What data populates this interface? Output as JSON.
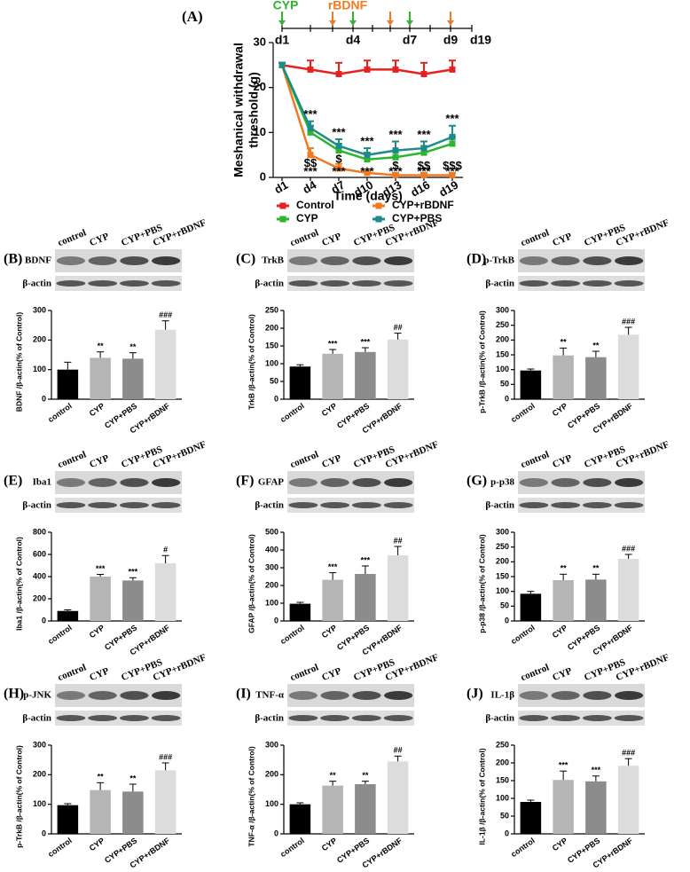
{
  "chart_data": [
    {
      "type": "line",
      "panel": "(A)",
      "timeline": {
        "cyp_label": "CYP",
        "rbdnf_label": "rBDNF",
        "labels": [
          "d1",
          "d4",
          "d7",
          "d9",
          "d19"
        ]
      },
      "ylabel": [
        "Meshanical withdrawal",
        "threshold (g)"
      ],
      "xlabel": "Time (days)",
      "categories": [
        "d1",
        "d4",
        "d7",
        "d10",
        "d13",
        "d16",
        "d19"
      ],
      "ylim": [
        0,
        30
      ],
      "yticks": [
        0,
        10,
        20,
        30
      ],
      "series": [
        {
          "name": "Control",
          "color": "#e8201e",
          "values": [
            25,
            24,
            23,
            24,
            24,
            23,
            24
          ],
          "errors": [
            0.5,
            2,
            2.5,
            2,
            2,
            2.5,
            2
          ]
        },
        {
          "name": "CYP+rBDNF",
          "color": "#f07a22",
          "values": [
            25,
            5,
            2,
            1,
            0.5,
            0.5,
            0.5
          ],
          "errors": [
            0.5,
            1.5,
            1,
            0.5,
            0.5,
            0.5,
            0.5
          ]
        },
        {
          "name": "CYP",
          "color": "#2db52d",
          "values": [
            25,
            10,
            6,
            4,
            4.5,
            5.5,
            7.5
          ],
          "errors": [
            0.5,
            1.5,
            1.5,
            1.5,
            1.5,
            1.5,
            1.5
          ]
        },
        {
          "name": "CYP+PBS",
          "color": "#1f8a8a",
          "values": [
            25,
            11,
            7,
            5,
            6,
            6.5,
            9
          ],
          "errors": [
            0.5,
            1.5,
            1.5,
            1.5,
            2,
            1.5,
            2.5
          ]
        }
      ],
      "sig_upper": [
        null,
        "***",
        "***",
        "***",
        "***",
        "***",
        "***"
      ],
      "sig_dollar": [
        null,
        "$$",
        "$",
        null,
        "$",
        "$$",
        "$$$"
      ],
      "sig_lower": [
        null,
        "***",
        "***",
        "***",
        "***",
        "***",
        "***"
      ]
    },
    {
      "type": "bar",
      "panel": "(B)",
      "blot_labels": [
        "BDNF",
        "β-actin"
      ],
      "categories": [
        "control",
        "CYP",
        "CYP+PBS",
        "CYP+rBDNF"
      ],
      "values": [
        100,
        140,
        137,
        235
      ],
      "errors": [
        25,
        20,
        20,
        30
      ],
      "significance": [
        null,
        "**",
        "**",
        "###"
      ],
      "colors": [
        "#000000",
        "#b5b5b5",
        "#8c8c8c",
        "#dcdcdc"
      ],
      "ylabel": "BDNF /β-actin(% of Control)",
      "ylim": [
        0,
        300
      ],
      "yticks": [
        0,
        100,
        200,
        300
      ]
    },
    {
      "type": "bar",
      "panel": "(C)",
      "blot_labels": [
        "TrkB",
        "β-actin"
      ],
      "categories": [
        "control",
        "CYP",
        "CYP+PBS",
        "CYP+rBDNF"
      ],
      "values": [
        92,
        128,
        133,
        168
      ],
      "errors": [
        5,
        12,
        12,
        18
      ],
      "significance": [
        null,
        "***",
        "***",
        "##"
      ],
      "colors": [
        "#000000",
        "#b5b5b5",
        "#8c8c8c",
        "#dcdcdc"
      ],
      "ylabel": "TrkB /β-actin(% of Control)",
      "ylim": [
        0,
        250
      ],
      "yticks": [
        0,
        50,
        100,
        150,
        200,
        250
      ]
    },
    {
      "type": "bar",
      "panel": "(D)",
      "blot_labels": [
        "p-TrkB",
        "β-actin"
      ],
      "categories": [
        "control",
        "CYP",
        "CYP+PBS",
        "CYP+rBDNF"
      ],
      "values": [
        97,
        148,
        142,
        218
      ],
      "errors": [
        5,
        25,
        20,
        25
      ],
      "significance": [
        null,
        "**",
        "**",
        "###"
      ],
      "colors": [
        "#000000",
        "#b5b5b5",
        "#8c8c8c",
        "#dcdcdc"
      ],
      "ylabel": "p-TrkB /β-actin(% of Control)",
      "ylim": [
        0,
        300
      ],
      "yticks": [
        0,
        50,
        100,
        150,
        200,
        250,
        300
      ]
    },
    {
      "type": "bar",
      "panel": "(E)",
      "blot_labels": [
        "Iba1",
        "β-actin"
      ],
      "categories": [
        "control",
        "CYP",
        "CYP+PBS",
        "CYP+rBDNF"
      ],
      "values": [
        90,
        400,
        365,
        520
      ],
      "errors": [
        10,
        20,
        25,
        70
      ],
      "significance": [
        null,
        "***",
        "***",
        "#"
      ],
      "colors": [
        "#000000",
        "#b5b5b5",
        "#8c8c8c",
        "#dcdcdc"
      ],
      "ylabel": "Iba1 /β-actin(% of Control)",
      "ylim": [
        0,
        800
      ],
      "yticks": [
        0,
        200,
        400,
        600,
        800
      ]
    },
    {
      "type": "bar",
      "panel": "(F)",
      "blot_labels": [
        "GFAP",
        "β-actin"
      ],
      "categories": [
        "control",
        "CYP",
        "CYP+PBS",
        "CYP+rBDNF"
      ],
      "values": [
        97,
        232,
        265,
        370
      ],
      "errors": [
        8,
        40,
        45,
        50
      ],
      "significance": [
        null,
        "***",
        "***",
        "##"
      ],
      "colors": [
        "#000000",
        "#b5b5b5",
        "#8c8c8c",
        "#dcdcdc"
      ],
      "ylabel": "GFAP /β-actin(% of Control)",
      "ylim": [
        0,
        500
      ],
      "yticks": [
        0,
        100,
        200,
        300,
        400,
        500
      ]
    },
    {
      "type": "bar",
      "panel": "(G)",
      "blot_labels": [
        "p-p38",
        "β-actin"
      ],
      "categories": [
        "control",
        "CYP",
        "CYP+PBS",
        "CYP+rBDNF"
      ],
      "values": [
        92,
        138,
        140,
        210
      ],
      "errors": [
        8,
        20,
        18,
        15
      ],
      "significance": [
        null,
        "**",
        "**",
        "###"
      ],
      "colors": [
        "#000000",
        "#b5b5b5",
        "#8c8c8c",
        "#dcdcdc"
      ],
      "ylabel": "p-p38 /β-actin(% of Control)",
      "ylim": [
        0,
        300
      ],
      "yticks": [
        0,
        50,
        100,
        150,
        200,
        250,
        300
      ]
    },
    {
      "type": "bar",
      "panel": "(H)",
      "blot_labels": [
        "p-JNK",
        "β-actin"
      ],
      "categories": [
        "control",
        "CYP",
        "CYP+PBS",
        "CYP+rBDNF"
      ],
      "values": [
        97,
        148,
        143,
        215
      ],
      "errors": [
        5,
        25,
        25,
        25
      ],
      "significance": [
        null,
        "**",
        "**",
        "###"
      ],
      "colors": [
        "#000000",
        "#b5b5b5",
        "#8c8c8c",
        "#dcdcdc"
      ],
      "ylabel": "p-TrkB /β-actin(% of Control)",
      "ylim": [
        0,
        300
      ],
      "yticks": [
        0,
        100,
        200,
        300
      ]
    },
    {
      "type": "bar",
      "panel": "(I)",
      "blot_labels": [
        "TNF-α",
        "β-actin"
      ],
      "categories": [
        "control",
        "CYP",
        "CYP+PBS",
        "CYP+rBDNF"
      ],
      "values": [
        100,
        163,
        168,
        245
      ],
      "errors": [
        5,
        15,
        10,
        18
      ],
      "significance": [
        null,
        "**",
        "**",
        "##"
      ],
      "colors": [
        "#000000",
        "#b5b5b5",
        "#8c8c8c",
        "#dcdcdc"
      ],
      "ylabel": "TNF-α /β-actin(% of Control)",
      "ylim": [
        0,
        300
      ],
      "yticks": [
        0,
        100,
        200,
        300
      ]
    },
    {
      "type": "bar",
      "panel": "(J)",
      "blot_labels": [
        "IL-1β",
        "β-actin"
      ],
      "categories": [
        "control",
        "CYP",
        "CYP+PBS",
        "CYP+rBDNF"
      ],
      "values": [
        90,
        152,
        148,
        192
      ],
      "errors": [
        5,
        25,
        15,
        20
      ],
      "significance": [
        null,
        "***",
        "***",
        "###"
      ],
      "colors": [
        "#000000",
        "#b5b5b5",
        "#8c8c8c",
        "#dcdcdc"
      ],
      "ylabel": "IL-1β /β-actin(% of Control)",
      "ylim": [
        0,
        250
      ],
      "yticks": [
        0,
        50,
        100,
        150,
        200,
        250
      ]
    }
  ]
}
